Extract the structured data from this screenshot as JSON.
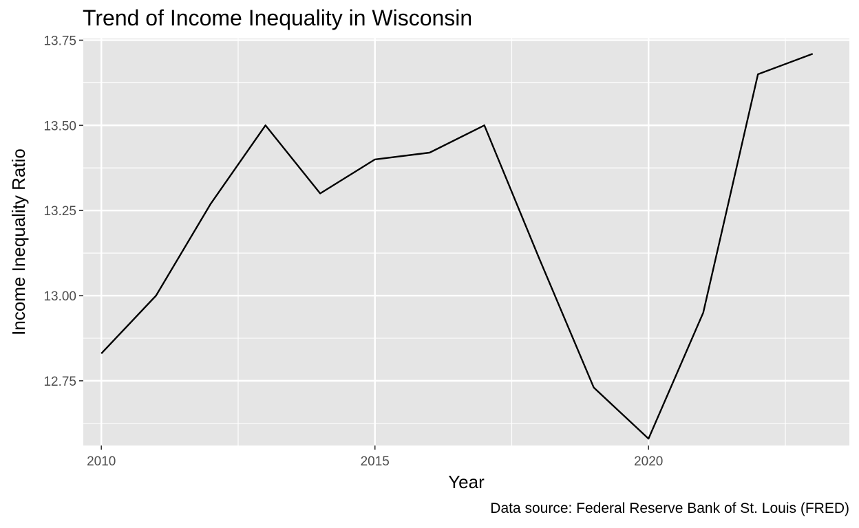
{
  "chart_data": {
    "type": "line",
    "title": "Trend of Income Inequality in Wisconsin",
    "xlabel": "Year",
    "ylabel": "Income Inequality Ratio",
    "caption": "Data source: Federal Reserve Bank of St. Louis (FRED)",
    "x": [
      2010,
      2011,
      2012,
      2013,
      2014,
      2015,
      2016,
      2017,
      2018,
      2019,
      2020,
      2021,
      2022,
      2023
    ],
    "series": [
      {
        "values": [
          12.83,
          13.0,
          13.27,
          13.5,
          13.3,
          13.4,
          13.42,
          13.5,
          13.11,
          12.73,
          12.58,
          12.95,
          13.65,
          13.71
        ]
      }
    ],
    "xlim": [
      2009.67,
      2023.67
    ],
    "ylim": [
      12.56,
      13.755
    ],
    "x_ticks": [
      2010,
      2015,
      2020
    ],
    "x_tick_labels": [
      "2010",
      "2015",
      "2020"
    ],
    "y_ticks": [
      12.75,
      13.0,
      13.25,
      13.5,
      13.75
    ],
    "y_tick_labels": [
      "12.75",
      "13.00",
      "13.25",
      "13.50",
      "13.75"
    ],
    "grid": true,
    "colors": {
      "panel": "#e5e5e5",
      "grid": "#ffffff",
      "line": "#000000",
      "tick_text": "#4d4d4d"
    }
  }
}
